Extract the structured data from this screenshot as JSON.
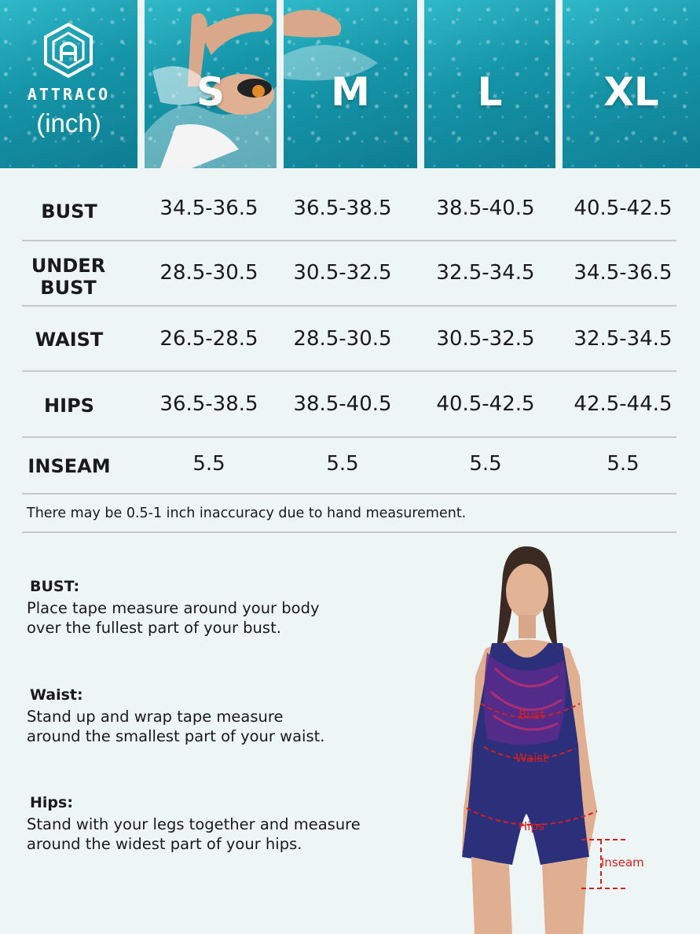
{
  "brand": {
    "name": "ATTRACO",
    "unit": "(inch)"
  },
  "sizes": [
    "S",
    "M",
    "L",
    "XL"
  ],
  "rows": [
    {
      "label": "BUST",
      "values": [
        "34.5-36.5",
        "36.5-38.5",
        "38.5-40.5",
        "40.5-42.5"
      ]
    },
    {
      "label": "UNDER BUST",
      "values": [
        "28.5-30.5",
        "30.5-32.5",
        "32.5-34.5",
        "34.5-36.5"
      ]
    },
    {
      "label": "WAIST",
      "values": [
        "26.5-28.5",
        "28.5-30.5",
        "30.5-32.5",
        "32.5-34.5"
      ]
    },
    {
      "label": "HIPS",
      "values": [
        "36.5-38.5",
        "38.5-40.5",
        "40.5-42.5",
        "42.5-44.5"
      ]
    },
    {
      "label": "INSEAM",
      "values": [
        "5.5",
        "5.5",
        "5.5",
        "5.5"
      ]
    }
  ],
  "note": "There may be 0.5-1 inch inaccuracy due to hand measurement.",
  "instructions": [
    {
      "heading": "BUST:",
      "body": "Place tape measure around your body\nover the fullest part of your bust."
    },
    {
      "heading": "Waist:",
      "body": "Stand up and wrap tape measure\naround the smallest part of your waist."
    },
    {
      "heading": "Hips:",
      "body": "Stand with your legs together and measure\n around the widest part of your hips."
    }
  ],
  "figure_labels": {
    "bust": "Bust",
    "waist": "Waist",
    "hips": "Hips",
    "inseam": "Inseam"
  },
  "colors": {
    "water": "#1695a8",
    "swimsuit": "#2c2f7a",
    "measure_line": "#d42020"
  }
}
